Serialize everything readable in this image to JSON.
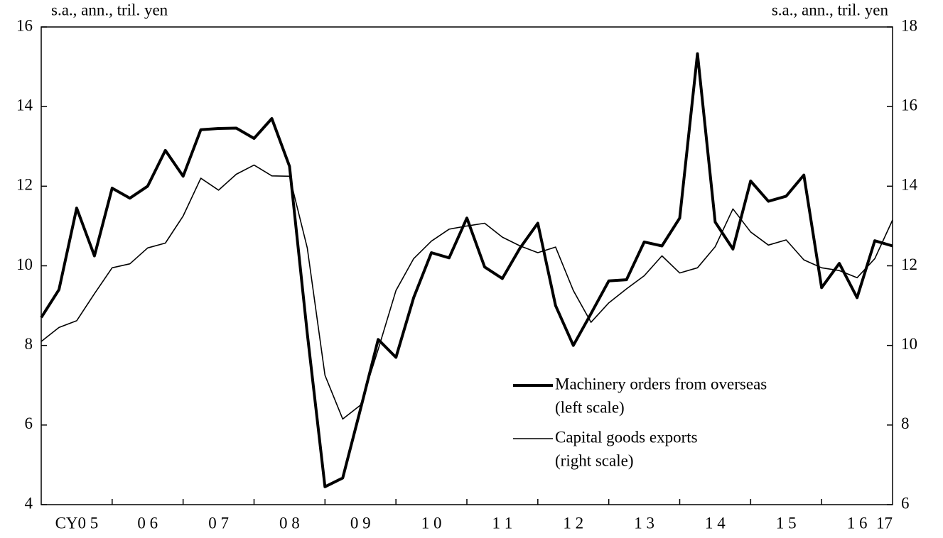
{
  "chart_data": {
    "type": "line",
    "y_unit_label": "s.a., ann., tril. yen",
    "y2_unit_label": "s.a., ann., tril. yen",
    "x": [
      2005,
      2005.25,
      2005.5,
      2005.75,
      2006,
      2006.25,
      2006.5,
      2006.75,
      2007,
      2007.25,
      2007.5,
      2007.75,
      2008,
      2008.25,
      2008.5,
      2008.75,
      2009,
      2009.25,
      2009.5,
      2009.75,
      2010,
      2010.25,
      2010.5,
      2010.75,
      2011,
      2011.25,
      2011.5,
      2011.75,
      2012,
      2012.25,
      2012.5,
      2012.75,
      2013,
      2013.25,
      2013.5,
      2013.75,
      2014,
      2014.25,
      2014.5,
      2014.75,
      2015,
      2015.25,
      2015.5,
      2015.75,
      2016,
      2016.25,
      2016.5,
      2016.75,
      2017
    ],
    "xlim": [
      2005,
      2017
    ],
    "xticks": [
      {
        "value": 2005.5,
        "label": "CY0 5"
      },
      {
        "value": 2006.5,
        "label": "0 6"
      },
      {
        "value": 2007.5,
        "label": "0 7"
      },
      {
        "value": 2008.5,
        "label": "0 8"
      },
      {
        "value": 2009.5,
        "label": "0 9"
      },
      {
        "value": 2010.5,
        "label": "1 0"
      },
      {
        "value": 2011.5,
        "label": "1 1"
      },
      {
        "value": 2012.5,
        "label": "1 2"
      },
      {
        "value": 2013.5,
        "label": "1 3"
      },
      {
        "value": 2014.5,
        "label": "1 4"
      },
      {
        "value": 2015.5,
        "label": "1 5"
      },
      {
        "value": 2016.5,
        "label": "1 6"
      },
      {
        "value": 2017,
        "label": "17"
      }
    ],
    "ylim": [
      4,
      16
    ],
    "yticks": [
      4,
      6,
      8,
      10,
      12,
      14,
      16
    ],
    "y2lim": [
      6,
      18
    ],
    "y2ticks": [
      6,
      8,
      10,
      12,
      14,
      16,
      18
    ],
    "series": [
      {
        "name": "Machinery orders from overseas",
        "name_note": "(left scale)",
        "color": "#000000",
        "width": 4,
        "values": [
          8.7,
          9.4,
          11.45,
          10.25,
          11.95,
          11.7,
          12.0,
          12.9,
          12.25,
          13.42,
          13.45,
          13.46,
          13.2,
          13.7,
          12.5,
          8.3,
          4.45,
          4.67,
          6.4,
          8.15,
          7.7,
          9.2,
          10.33,
          10.2,
          11.2,
          9.97,
          9.68,
          10.45,
          11.07,
          9.0,
          8.0,
          8.8,
          9.62,
          9.65,
          10.6,
          10.5,
          11.2,
          15.33,
          11.1,
          10.42,
          12.13,
          11.62,
          11.75,
          12.28,
          9.45,
          10.06,
          9.2,
          10.63,
          10.5
        ]
      },
      {
        "name": "Capital goods exports",
        "name_note": "(right scale)",
        "color": "#000000",
        "width": 1.6,
        "axis": "y2",
        "values": [
          10.1,
          10.45,
          10.62,
          11.3,
          11.95,
          12.05,
          12.45,
          12.57,
          13.25,
          14.2,
          13.9,
          14.3,
          14.53,
          14.26,
          14.25,
          12.45,
          9.25,
          8.15,
          8.5,
          9.9,
          11.38,
          12.18,
          12.62,
          12.92,
          13.0,
          13.07,
          12.72,
          12.5,
          12.33,
          12.47,
          11.38,
          10.58,
          11.07,
          11.42,
          11.75,
          12.25,
          11.82,
          11.95,
          12.48,
          13.43,
          12.85,
          12.52,
          12.65,
          12.15,
          11.95,
          11.88,
          11.7,
          12.18,
          13.15
        ]
      }
    ]
  }
}
